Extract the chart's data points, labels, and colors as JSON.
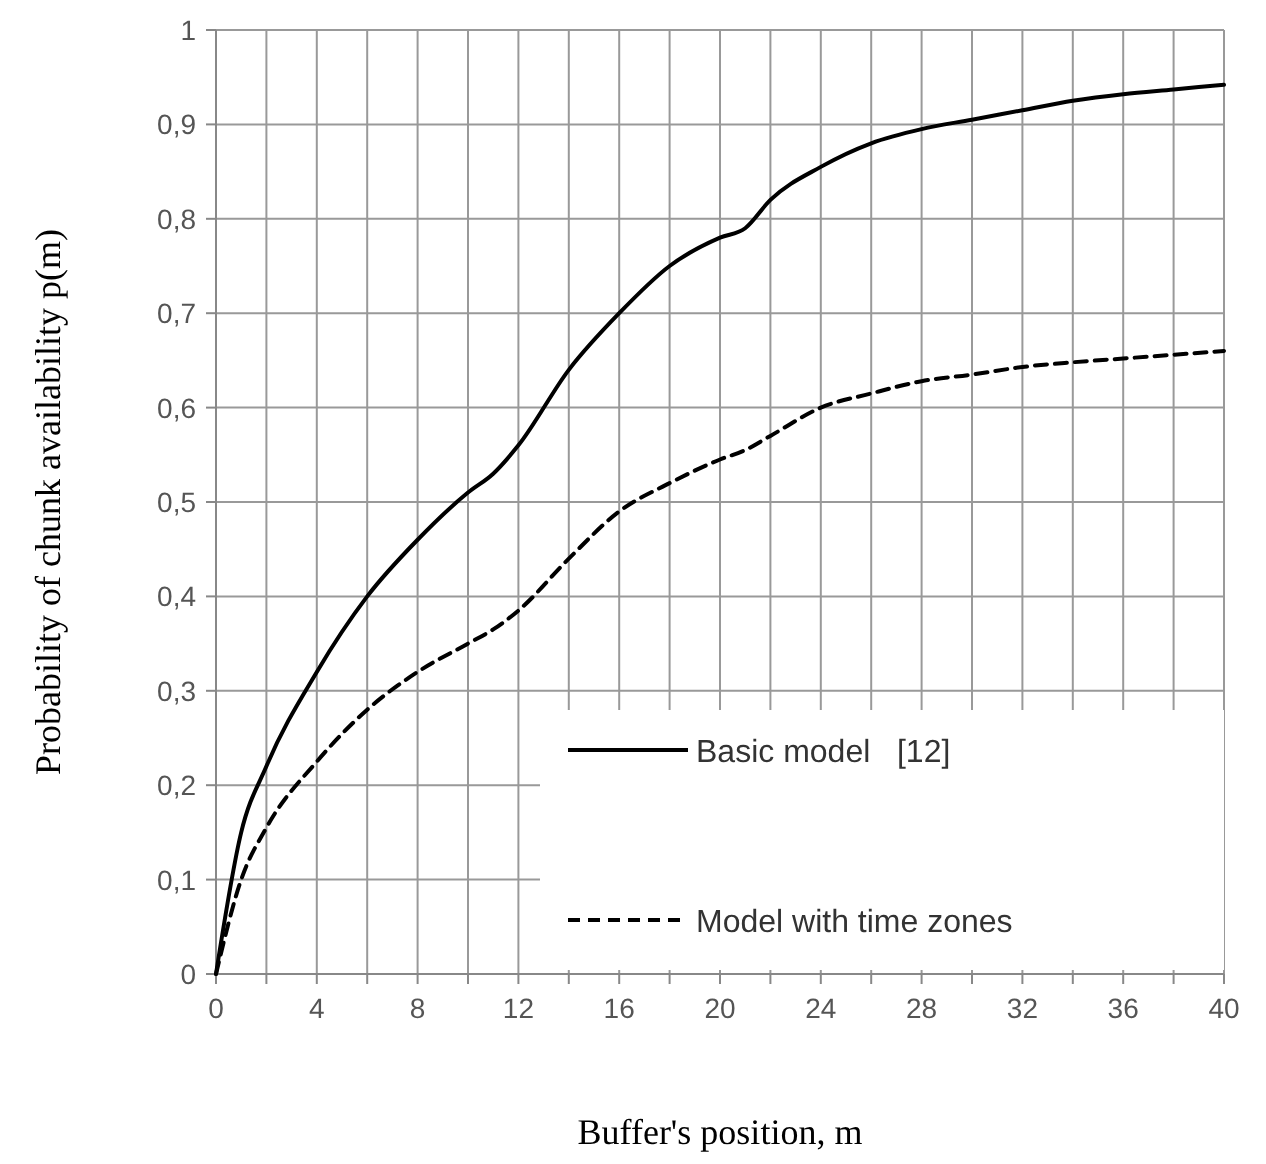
{
  "chart_data": {
    "type": "line",
    "xlabel": "Buffer's position, m",
    "ylabel": "Probability of chunk availability p(m)",
    "xlim": [
      0,
      40
    ],
    "ylim": [
      0,
      1
    ],
    "xticks": [
      0,
      {
        "value": 2,
        "label": null
      },
      4,
      {
        "value": 6,
        "label": null
      },
      8,
      {
        "value": 10,
        "label": null
      },
      12,
      {
        "value": 14,
        "label": null
      },
      16,
      {
        "value": 18,
        "label": null
      },
      20,
      {
        "value": 22,
        "label": null
      },
      24,
      {
        "value": 26,
        "label": null
      },
      28,
      {
        "value": 30,
        "label": null
      },
      32,
      {
        "value": 34,
        "label": null
      },
      36,
      {
        "value": 38,
        "label": null
      },
      40
    ],
    "yticks": [
      0,
      {
        "value": 0.1,
        "label": "0,1"
      },
      {
        "value": 0.2,
        "label": "0,2"
      },
      {
        "value": 0.3,
        "label": "0,3"
      },
      {
        "value": 0.4,
        "label": "0,4"
      },
      {
        "value": 0.5,
        "label": "0,5"
      },
      {
        "value": 0.6,
        "label": "0,6"
      },
      {
        "value": 0.7,
        "label": "0,7"
      },
      {
        "value": 0.8,
        "label": "0,8"
      },
      {
        "value": 0.9,
        "label": "0,9"
      },
      1
    ],
    "grid": true,
    "legend": "bottom right",
    "marker": "none",
    "x": [
      0,
      1,
      2,
      4,
      6,
      8,
      10,
      11,
      12,
      14,
      16,
      18,
      20,
      21,
      22,
      24,
      26,
      28,
      30,
      32,
      34,
      36,
      38,
      40
    ],
    "series": [
      {
        "name": "Basic model   [12]",
        "color": "#000000",
        "line_style": "solid",
        "values": [
          0,
          0.15,
          0.22,
          0.32,
          0.4,
          0.46,
          0.51,
          0.53,
          0.56,
          0.64,
          0.7,
          0.75,
          0.78,
          0.79,
          0.82,
          0.855,
          0.88,
          0.895,
          0.905,
          0.915,
          0.925,
          0.932,
          0.937,
          0.942
        ]
      },
      {
        "name": "Model with time zones",
        "color": "#000000",
        "line_style": "dashed",
        "values": [
          0,
          0.1,
          0.155,
          0.225,
          0.28,
          0.32,
          0.35,
          0.365,
          0.385,
          0.44,
          0.49,
          0.52,
          0.545,
          0.555,
          0.57,
          0.6,
          0.615,
          0.628,
          0.635,
          0.643,
          0.648,
          0.652,
          0.656,
          0.66
        ]
      }
    ]
  }
}
